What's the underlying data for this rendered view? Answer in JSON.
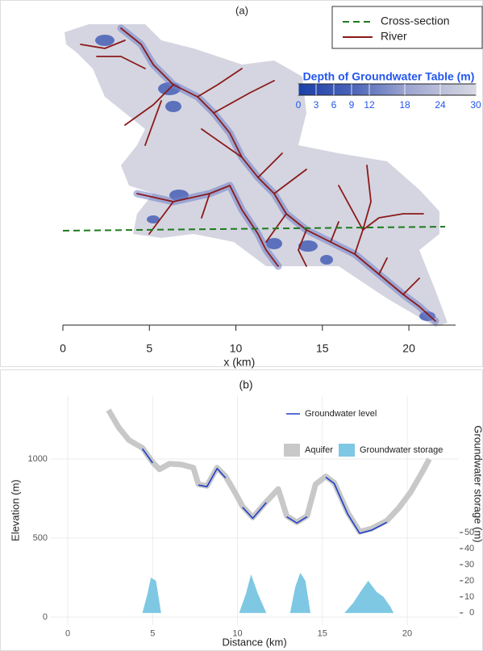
{
  "chart_data": [
    {
      "type": "map",
      "title": "(a)",
      "x_label": "x (km)",
      "xlim": [
        0,
        22.7
      ],
      "xticks": [
        0,
        5,
        10,
        15,
        20
      ],
      "legend": [
        {
          "name": "Cross-section",
          "color": "#1e7a1e"
        },
        {
          "name": "River",
          "color": "#8b1a1a"
        }
      ],
      "colorbar": {
        "title": "Depth of Groundwater Table (m)",
        "lim": [
          0,
          30
        ],
        "ticks": [
          0,
          3,
          6,
          9,
          12,
          18,
          24,
          30
        ]
      }
    },
    {
      "type": "line",
      "title": "(b)",
      "x_label": "Distance (km)",
      "y_label": "Elevation (m)",
      "y2_label": "Groundwater storage (m)",
      "xlim": [
        -1,
        23
      ],
      "xticks": [
        0,
        5,
        10,
        15,
        20
      ],
      "ylim": [
        -50,
        1400
      ],
      "yticks": [
        0,
        500,
        1000
      ],
      "y2lim": [
        -7.5,
        135
      ],
      "y2ticks": [
        0,
        10,
        20,
        30,
        40,
        50
      ],
      "grid": true,
      "x": [
        2.4,
        3.0,
        3.6,
        4.4,
        5.0,
        5.4,
        6.0,
        6.7,
        7.4,
        7.7,
        8.2,
        8.8,
        9.3,
        9.9,
        10.3,
        10.9,
        11.7,
        12.4,
        12.9,
        13.5,
        14.1,
        14.6,
        15.2,
        15.7,
        16.5,
        17.2,
        17.9,
        18.8,
        19.5,
        20.2,
        20.9,
        21.3
      ],
      "series": [
        {
          "name": "Aquifer",
          "color": "#c8c8c8",
          "values": [
            1310,
            1200,
            1120,
            1070,
            980,
            935,
            970,
            965,
            945,
            840,
            830,
            945,
            890,
            780,
            700,
            630,
            730,
            810,
            640,
            600,
            640,
            840,
            890,
            850,
            660,
            540,
            560,
            610,
            690,
            790,
            920,
            1000
          ]
        },
        {
          "name": "Groundwater level",
          "color": "#1f3fc6",
          "values": [
            null,
            null,
            null,
            1065,
            975,
            null,
            null,
            null,
            null,
            835,
            825,
            940,
            880,
            null,
            695,
            625,
            725,
            null,
            635,
            595,
            635,
            null,
            885,
            845,
            650,
            530,
            550,
            600,
            null,
            null,
            null,
            null
          ]
        },
        {
          "name": "Groundwater storage",
          "color": "#7ec8e3",
          "axis": "y2",
          "x": [
            4.4,
            4.7,
            4.9,
            5.2,
            5.5,
            10.1,
            10.5,
            10.8,
            11.2,
            11.7,
            13.1,
            13.4,
            13.7,
            14.0,
            14.3,
            16.3,
            16.8,
            17.3,
            17.7,
            18.2,
            18.6,
            19.0,
            19.2
          ],
          "values": [
            0,
            12,
            22,
            20,
            0,
            0,
            12,
            24,
            12,
            0,
            0,
            16,
            25,
            20,
            0,
            0,
            6,
            14,
            20,
            13,
            10,
            4,
            0
          ]
        }
      ]
    }
  ]
}
